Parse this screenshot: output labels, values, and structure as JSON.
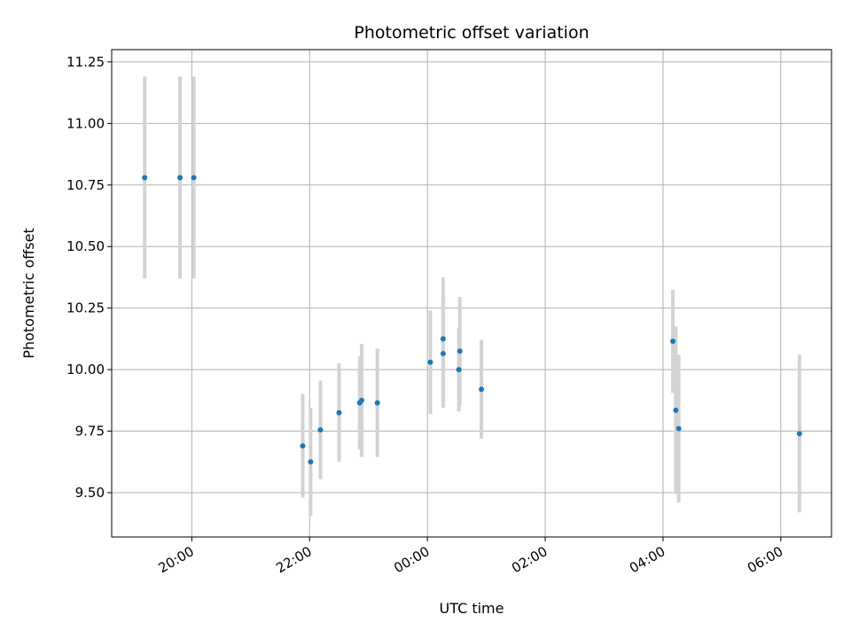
{
  "chart_data": {
    "type": "scatter",
    "title": "Photometric offset variation",
    "xlabel": "UTC time",
    "ylabel": "Photometric offset",
    "x_tick_labels": [
      "20:00",
      "22:00",
      "00:00",
      "02:00",
      "04:00",
      "06:00"
    ],
    "y_tick_labels": [
      "9.50",
      "9.75",
      "10.00",
      "10.25",
      "10.50",
      "10.75",
      "11.00",
      "11.25"
    ],
    "y_ticks": [
      9.5,
      9.75,
      10.0,
      10.25,
      10.5,
      10.75,
      11.0,
      11.25
    ],
    "ylim": [
      9.32,
      11.3
    ],
    "xlim_hours_from_2000": [
      -1.36,
      10.86
    ],
    "grid": true,
    "marker_color": "#1f77b4",
    "errorbar_color": "#d3d3d3",
    "series": [
      {
        "points": [
          {
            "time": "19:12",
            "y": 10.78,
            "err": 0.41
          },
          {
            "time": "19:48",
            "y": 10.78,
            "err": 0.41
          },
          {
            "time": "20:02",
            "y": 10.78,
            "err": 0.41
          },
          {
            "time": "21:53",
            "y": 9.69,
            "err": 0.21
          },
          {
            "time": "22:01",
            "y": 9.625,
            "err": 0.22
          },
          {
            "time": "22:11",
            "y": 9.755,
            "err": 0.2
          },
          {
            "time": "22:30",
            "y": 9.825,
            "err": 0.2
          },
          {
            "time": "22:51",
            "y": 9.865,
            "err": 0.19
          },
          {
            "time": "22:53",
            "y": 9.875,
            "err": 0.23
          },
          {
            "time": "23:09",
            "y": 9.865,
            "err": 0.22
          },
          {
            "time": "00:03",
            "y": 10.03,
            "err": 0.21
          },
          {
            "time": "00:16",
            "y": 10.125,
            "err": 0.25
          },
          {
            "time": "00:16",
            "y": 10.065,
            "err": 0.22
          },
          {
            "time": "00:32",
            "y": 10.0,
            "err": 0.17
          },
          {
            "time": "00:33",
            "y": 10.075,
            "err": 0.22
          },
          {
            "time": "00:55",
            "y": 9.92,
            "err": 0.2
          },
          {
            "time": "04:10",
            "y": 10.115,
            "err": 0.21
          },
          {
            "time": "04:13",
            "y": 9.835,
            "err": 0.34
          },
          {
            "time": "04:16",
            "y": 9.76,
            "err": 0.3
          },
          {
            "time": "06:19",
            "y": 9.74,
            "err": 0.32
          }
        ]
      }
    ]
  }
}
